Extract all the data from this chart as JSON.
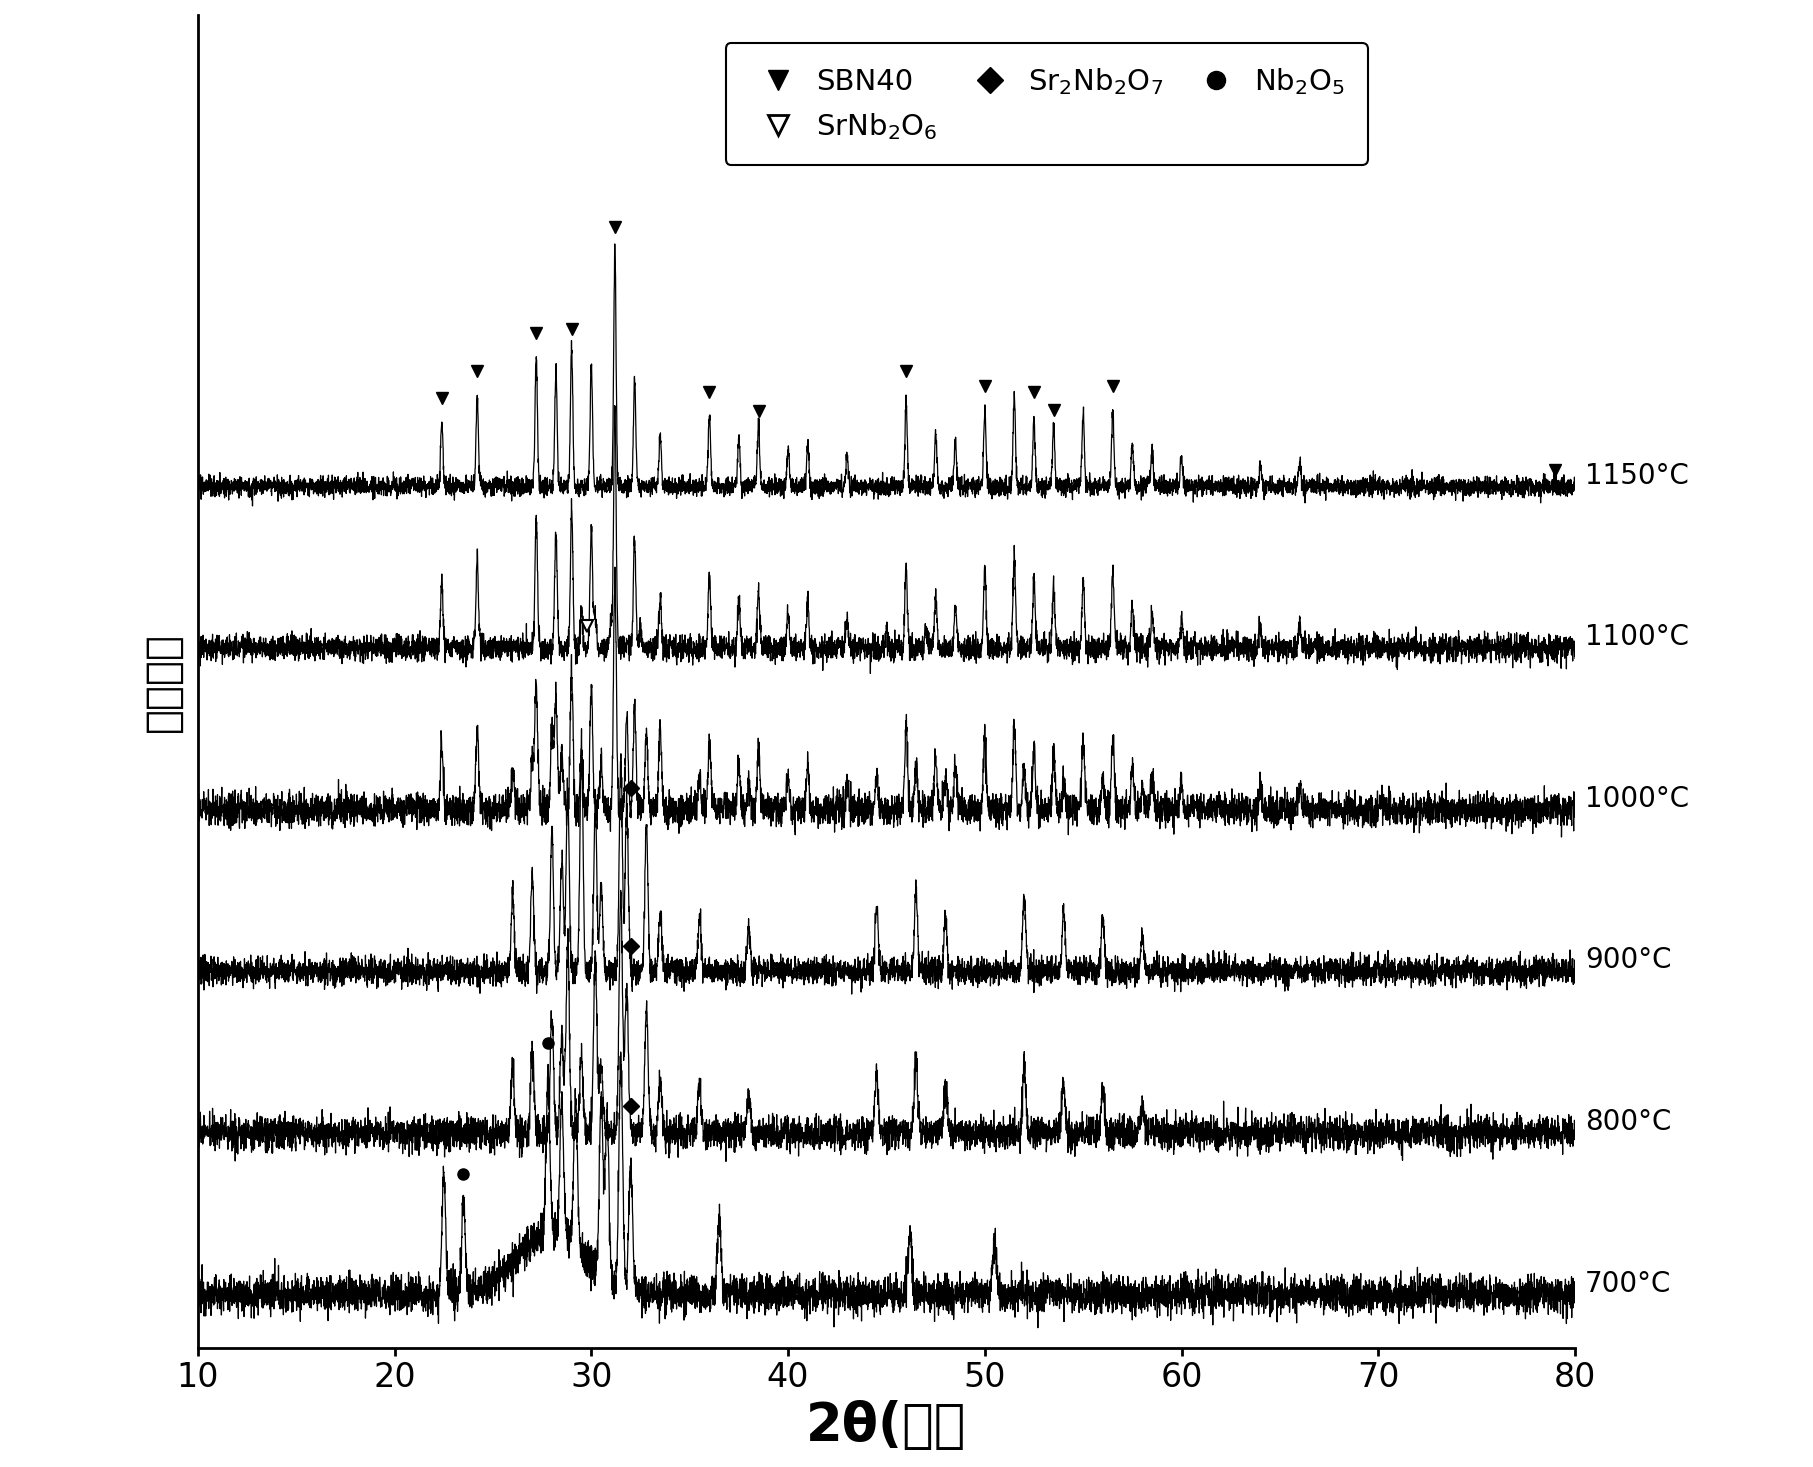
{
  "xlabel": "2θ(度）",
  "ylabel": "相对强度",
  "xlim": [
    10,
    80
  ],
  "xlabel_fontsize": 38,
  "ylabel_fontsize": 30,
  "tick_fontsize": 24,
  "label_fontsize": 20,
  "temperatures": [
    "700°C",
    "800°C",
    "900°C",
    "1000°C",
    "1100°C",
    "1150°C"
  ],
  "offsets": [
    0.0,
    1.2,
    2.4,
    3.6,
    4.8,
    6.0
  ],
  "background_color": "#ffffff",
  "line_color": "#000000",
  "noise_level": 0.025
}
